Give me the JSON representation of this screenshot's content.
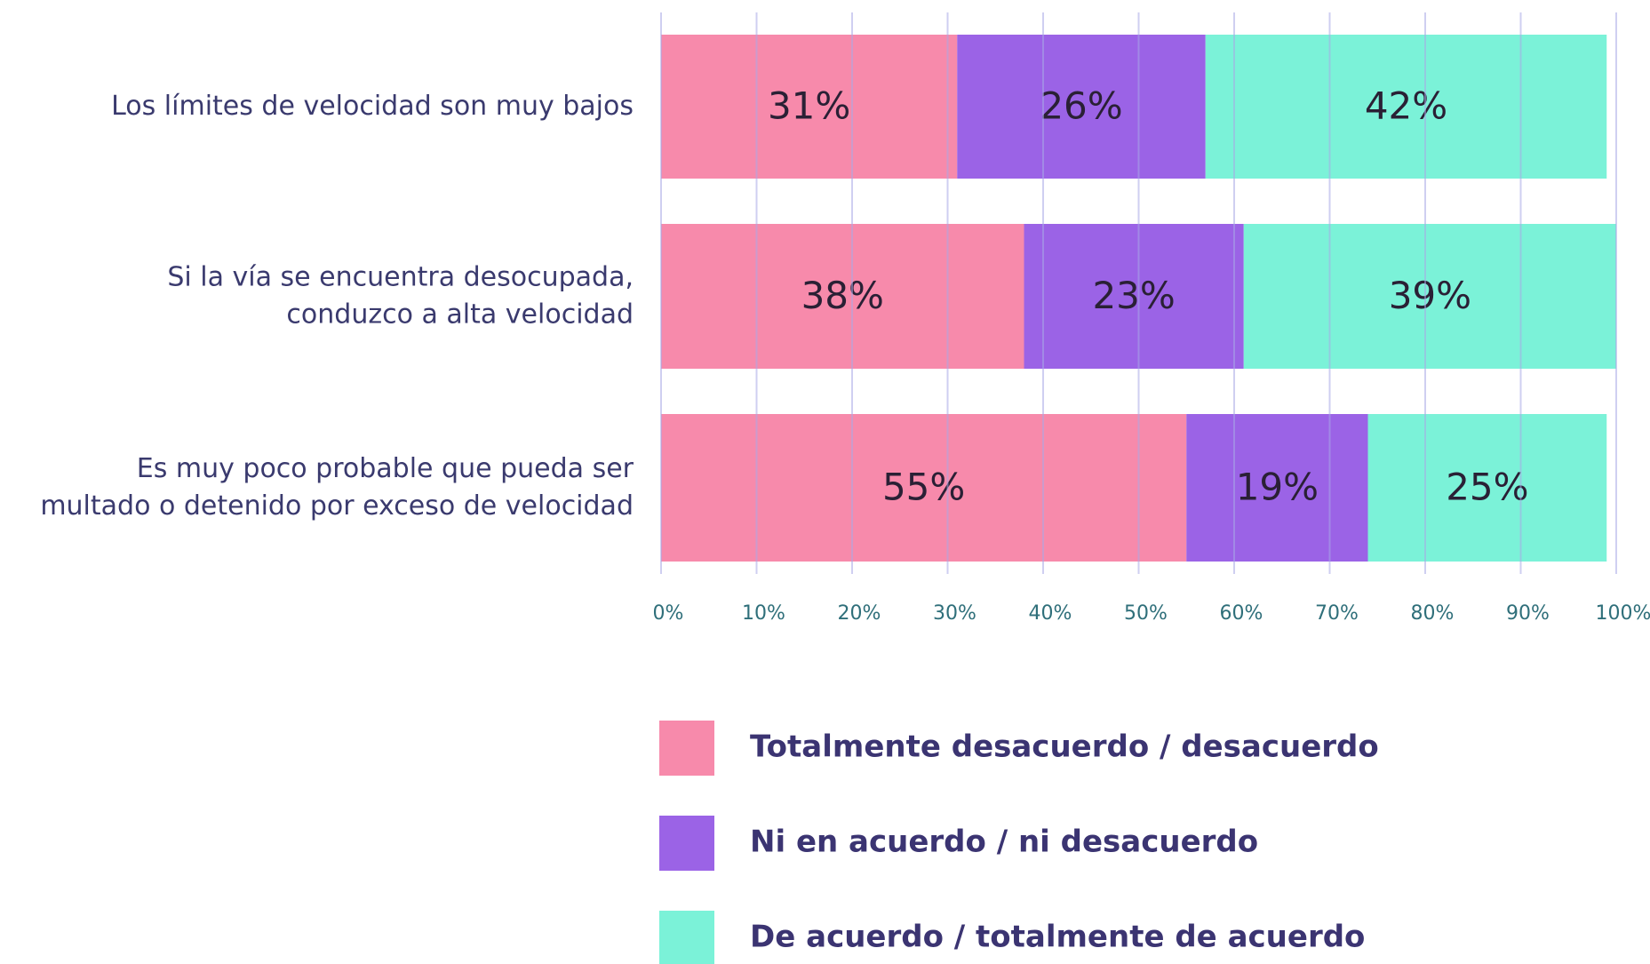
{
  "chart_data": {
    "type": "stacked_bar_horizontal",
    "categories": [
      [
        "Los límites de velocidad son muy bajos"
      ],
      [
        "Si la vía se encuentra desocupada,",
        "conduzco a alta velocidad"
      ],
      [
        "Es muy poco probable que pueda ser",
        "multado o detenido por exceso de velocidad"
      ]
    ],
    "series": [
      {
        "name": "Totalmente desacuerdo / desacuerdo",
        "color": "#f78aab",
        "values": [
          31,
          38,
          55
        ],
        "value_labels": [
          "31%",
          "38%",
          "55%"
        ]
      },
      {
        "name": "Ni en acuerdo / ni desacuerdo",
        "color": "#9b63e6",
        "values": [
          26,
          23,
          19
        ],
        "value_labels": [
          "26%",
          "23%",
          "19%"
        ]
      },
      {
        "name": "De acuerdo / totalmente de acuerdo",
        "color": "#7bf2d8",
        "values": [
          42,
          39,
          25
        ],
        "value_labels": [
          "42%",
          "39%",
          "25%"
        ]
      }
    ],
    "xlim": [
      0,
      100
    ],
    "xticks": [
      {
        "value": 0,
        "label": "0%"
      },
      {
        "value": 10,
        "label": "10%"
      },
      {
        "value": 20,
        "label": "20%"
      },
      {
        "value": 30,
        "label": "30%"
      },
      {
        "value": 40,
        "label": "40%"
      },
      {
        "value": 50,
        "label": "50%"
      },
      {
        "value": 60,
        "label": "60%"
      },
      {
        "value": 70,
        "label": "70%"
      },
      {
        "value": 80,
        "label": "80%"
      },
      {
        "value": 90,
        "label": "90%"
      },
      {
        "value": 100,
        "label": "100%"
      }
    ],
    "grid": true,
    "legend": "bottom"
  }
}
